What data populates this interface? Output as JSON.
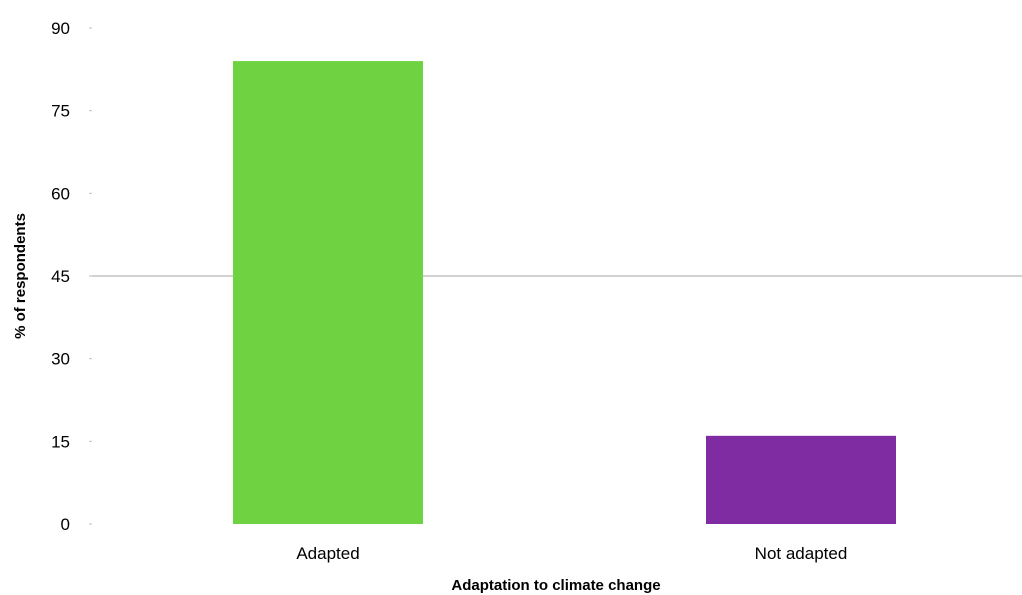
{
  "chart_data": {
    "type": "bar",
    "title": "",
    "xlabel": "Adaptation to climate change",
    "ylabel": "% of respondents",
    "categories": [
      "Adapted",
      "Not adapted"
    ],
    "values": [
      84,
      16
    ],
    "bar_colors": [
      "#6fd341",
      "#7f2ca3"
    ],
    "ylim": [
      0,
      90
    ],
    "yticks": [
      0,
      15,
      30,
      45,
      60,
      75,
      90
    ],
    "grid": "single horizontal reference line at 45",
    "legend": "none"
  },
  "colors": {
    "background": "#ffffff",
    "grid_line": "#a6a6a6",
    "text": "#000000"
  }
}
